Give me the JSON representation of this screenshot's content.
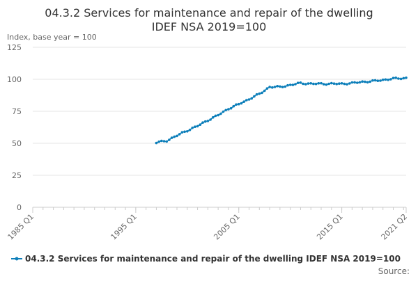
{
  "chart_data": {
    "type": "line",
    "title": "04.3.2 Services for maintenance and repair of the dwelling",
    "subtitle": "IDEF NSA 2019=100",
    "ylabel": "Index, base year = 100",
    "xlabel": "",
    "ylim": [
      0,
      125
    ],
    "yticks": [
      0,
      25,
      50,
      75,
      100,
      125
    ],
    "x_tick_labels": [
      "1985 Q1",
      "1995 Q1",
      "2005 Q1",
      "2015 Q1",
      "2021 Q2"
    ],
    "x_tick_positions": [
      1985.0,
      1995.0,
      2005.0,
      2015.0,
      2021.25
    ],
    "xlim": [
      1985.0,
      2021.25
    ],
    "grid": true,
    "legend_position": "bottom",
    "source_label": "Source:",
    "series": [
      {
        "name": "04.3.2 Services for maintenance and repair of the dwelling IDEF NSA 2019=100",
        "color": "#0d7fba",
        "anchors": [
          [
            1997.0,
            50.5
          ],
          [
            1998.0,
            52.0
          ],
          [
            1999.0,
            56.0
          ],
          [
            2000.0,
            60.0
          ],
          [
            2001.0,
            63.5
          ],
          [
            2002.0,
            68.0
          ],
          [
            2003.0,
            72.0
          ],
          [
            2004.0,
            77.0
          ],
          [
            2005.0,
            80.5
          ],
          [
            2006.0,
            84.5
          ],
          [
            2007.0,
            88.5
          ],
          [
            2008.0,
            94.0
          ],
          [
            2009.0,
            94.0
          ],
          [
            2010.0,
            95.5
          ],
          [
            2011.0,
            97.0
          ],
          [
            2012.0,
            96.5
          ],
          [
            2013.0,
            96.5
          ],
          [
            2014.0,
            96.5
          ],
          [
            2015.0,
            96.5
          ],
          [
            2016.0,
            97.0
          ],
          [
            2017.0,
            98.0
          ],
          [
            2018.0,
            98.5
          ],
          [
            2019.0,
            99.5
          ],
          [
            2020.0,
            100.5
          ],
          [
            2021.25,
            101.0
          ]
        ]
      }
    ]
  }
}
